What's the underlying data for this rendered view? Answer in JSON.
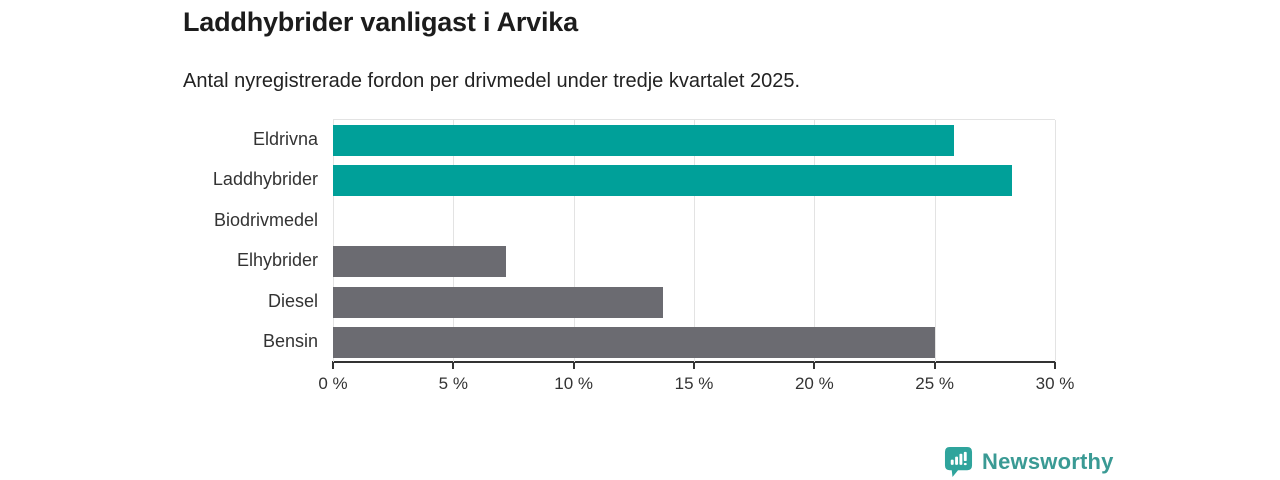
{
  "header": {
    "title": "Laddhybrider vanligast i Arvika",
    "subtitle": "Antal nyregistrerade fordon per drivmedel under tredje kvartalet 2025."
  },
  "chart_data": {
    "type": "bar",
    "orientation": "horizontal",
    "title": "Laddhybrider vanligast i Arvika",
    "subtitle": "Antal nyregistrerade fordon per drivmedel under tredje kvartalet 2025.",
    "categories": [
      "Eldrivna",
      "Laddhybrider",
      "Biodrivmedel",
      "Elhybrider",
      "Diesel",
      "Bensin"
    ],
    "values": [
      25.8,
      28.2,
      0,
      7.2,
      13.7,
      25.0
    ],
    "unit": "%",
    "bar_colors": [
      "#00a099",
      "#00a099",
      "#6b6b71",
      "#6b6b71",
      "#6b6b71",
      "#6b6b71"
    ],
    "highlight_color": "#00a099",
    "default_color": "#6b6b71",
    "xlim": [
      0,
      30
    ],
    "x_ticks": [
      0,
      5,
      10,
      15,
      20,
      25,
      30
    ],
    "x_tick_labels": [
      "0 %",
      "5 %",
      "10 %",
      "15 %",
      "20 %",
      "25 %",
      "30 %"
    ],
    "grid": "vertical",
    "gridline_color": "#e3e3e3",
    "axis_color": "#333333",
    "legend": "none"
  },
  "footer": {
    "brand": "Newsworthy",
    "brand_color": "#3a9a94",
    "icon_color": "#2fa49c"
  }
}
